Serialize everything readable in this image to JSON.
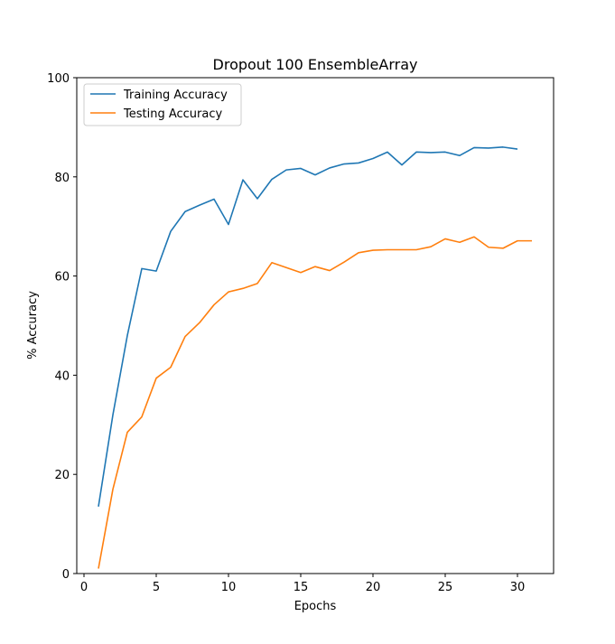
{
  "chart_data": {
    "type": "line",
    "title": "Dropout 100 EnsembleArray",
    "xlabel": "Epochs",
    "ylabel": "% Accuracy",
    "xlim": [
      -0.5,
      32.5
    ],
    "ylim": [
      0,
      100
    ],
    "xticks": [
      0,
      5,
      10,
      15,
      20,
      25,
      30
    ],
    "yticks": [
      0,
      20,
      40,
      60,
      80,
      100
    ],
    "grid": false,
    "legend_position": "top-left",
    "series": [
      {
        "name": "Training Accuracy",
        "color": "#1f77b4",
        "x": [
          1,
          2,
          3,
          4,
          5,
          6,
          7,
          8,
          9,
          10,
          11,
          12,
          13,
          14,
          15,
          16,
          17,
          18,
          19,
          20,
          21,
          22,
          23,
          24,
          25,
          26,
          27,
          28,
          29,
          30
        ],
        "y": [
          13.5,
          32,
          48,
          61.5,
          61,
          69,
          73,
          74.3,
          75.5,
          70.4,
          79.4,
          75.6,
          79.5,
          81.4,
          81.7,
          80.4,
          81.8,
          82.6,
          82.8,
          83.7,
          85,
          82.4,
          85,
          84.9,
          85,
          84.3,
          85.9,
          85.8,
          86,
          85.6
        ]
      },
      {
        "name": "Testing Accuracy",
        "color": "#ff7f0e",
        "x": [
          1,
          2,
          3,
          4,
          5,
          6,
          7,
          8,
          9,
          10,
          11,
          12,
          13,
          14,
          15,
          16,
          17,
          18,
          19,
          20,
          21,
          22,
          23,
          24,
          25,
          26,
          27,
          28,
          29,
          30,
          31
        ],
        "y": [
          1,
          17,
          28.5,
          31.6,
          39.4,
          41.6,
          47.8,
          50.6,
          54.2,
          56.8,
          57.5,
          58.5,
          62.7,
          61.7,
          60.7,
          61.9,
          61.1,
          62.8,
          64.7,
          65.2,
          65.3,
          65.3,
          65.3,
          65.9,
          67.5,
          66.8,
          67.9,
          65.8,
          65.6,
          67.1,
          67.1
        ]
      }
    ]
  }
}
